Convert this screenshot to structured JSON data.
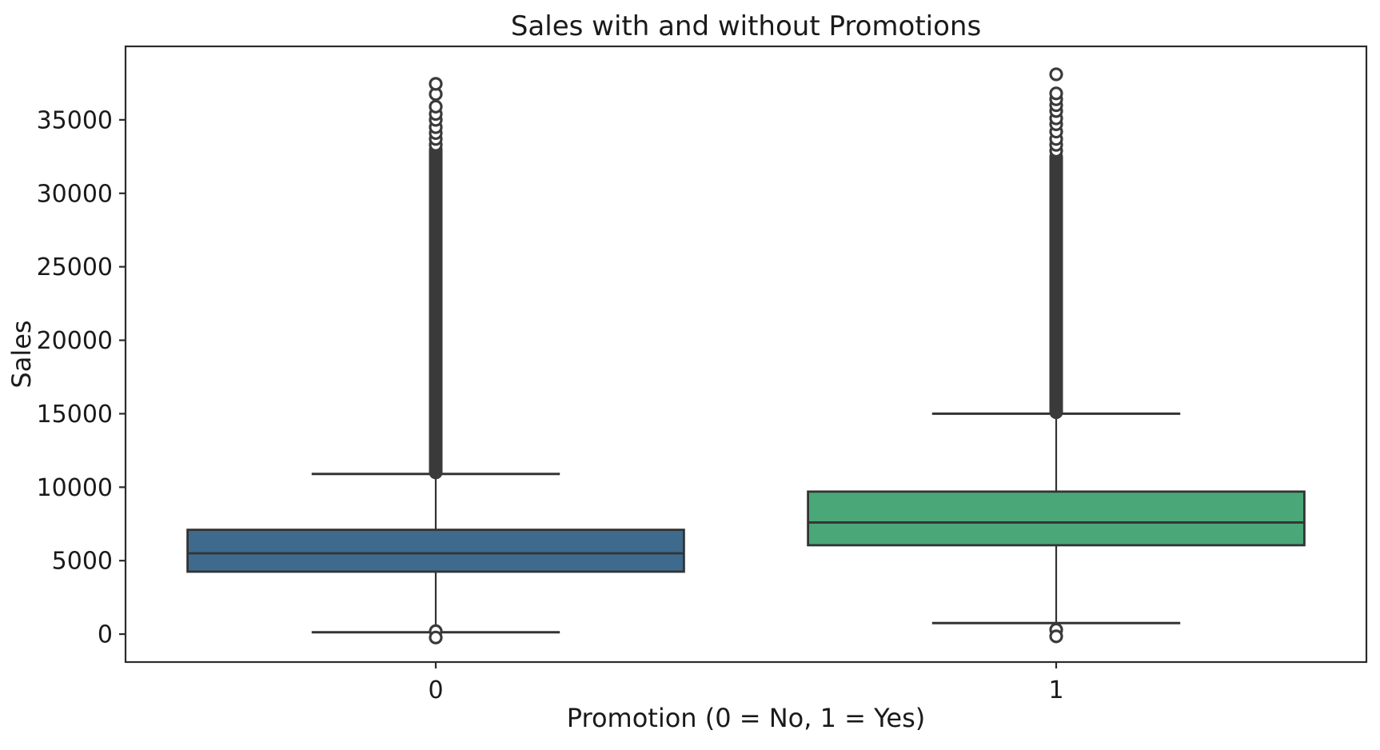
{
  "chart_data": {
    "type": "box",
    "title": "Sales with and without Promotions",
    "xlabel": "Promotion (0 = No, 1 = Yes)",
    "ylabel": "Sales",
    "categories": [
      "0",
      "1"
    ],
    "yticks": [
      0,
      5000,
      10000,
      15000,
      20000,
      25000,
      30000,
      35000
    ],
    "ylim": [
      -1900,
      40000
    ],
    "grid": false,
    "legend": "none",
    "colors": {
      "background": "#ffffff",
      "spine": "#2b2b2b",
      "box_line": "#333333",
      "outlier": "#3a3a3a",
      "text": "#1a1a1a"
    },
    "boxes": [
      {
        "category": "0",
        "color": "#3E6B8D",
        "q1": 4250,
        "median": 5500,
        "q3": 7100,
        "whisker_low": 125,
        "whisker_high": 10900,
        "outlier_dense_high": [
          11000,
          33000
        ],
        "outlier_rings_high": [
          33300,
          33700,
          34100,
          34500,
          35000,
          35400,
          35900,
          36750,
          37450
        ],
        "outliers_low": [
          200,
          -230
        ]
      },
      {
        "category": "1",
        "color": "#4AA778",
        "q1": 6050,
        "median": 7600,
        "q3": 9700,
        "whisker_low": 750,
        "whisker_high": 15000,
        "outlier_dense_high": [
          15100,
          32500
        ],
        "outlier_rings_high": [
          32900,
          33300,
          33700,
          34200,
          34700,
          35100,
          35600,
          36000,
          36400,
          36800,
          38100
        ],
        "outliers_low": [
          300,
          -150
        ]
      }
    ]
  }
}
